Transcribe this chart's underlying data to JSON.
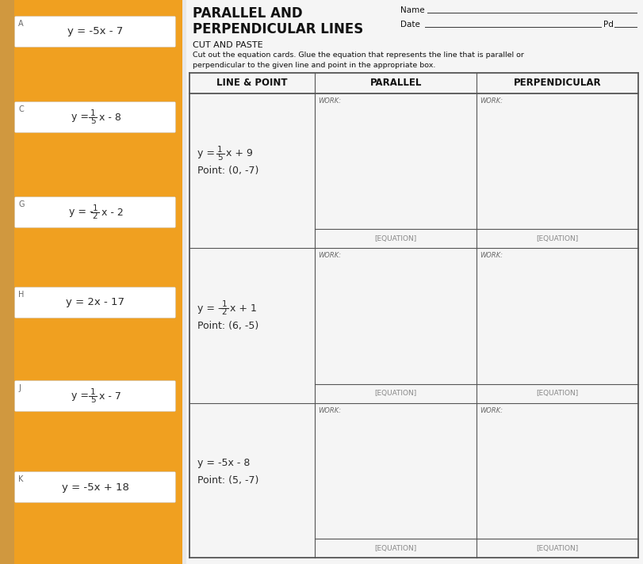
{
  "bg_color": "#e8e8e8",
  "orange_color": "#F0A020",
  "white": "#FFFFFF",
  "ws_bg": "#f0f0f0",
  "card_text_color": "#2a2a2a",
  "title_line1": "PARALLEL AND",
  "title_line2": "PERPENDICULAR LINES",
  "subtitle": "CUT AND PASTE",
  "instructions_line1": "Cut out the equation cards. Glue the equation that represents the line that is parallel or",
  "instructions_line2": "perpendicular to the given line and point in the appropriate box.",
  "col_headers": [
    "LINE & POINT",
    "PARALLEL",
    "PERPENDICULAR"
  ],
  "cards": [
    {
      "letter": "A",
      "has_frac": false,
      "text": "y = -5x - 7"
    },
    {
      "letter": "C",
      "has_frac": true,
      "prefix": "y = ",
      "num": "1",
      "den": "5",
      "suffix": "x - 8"
    },
    {
      "letter": "G",
      "has_frac": true,
      "prefix": "y = -",
      "num": "1",
      "den": "2",
      "suffix": "x - 2"
    },
    {
      "letter": "H",
      "has_frac": false,
      "text": "y = 2x - 17"
    },
    {
      "letter": "J",
      "has_frac": true,
      "prefix": "y = ",
      "num": "1",
      "den": "5",
      "suffix": "x - 7"
    },
    {
      "letter": "K",
      "has_frac": false,
      "text": "y = -5x + 18"
    }
  ],
  "rows": [
    {
      "has_frac": true,
      "prefix": "y = ",
      "num": "1",
      "den": "5",
      "suffix": "x + 9",
      "point": "Point: (0, -7)"
    },
    {
      "has_frac": true,
      "prefix": "y = -",
      "num": "1",
      "den": "2",
      "suffix": "x + 1",
      "point": "Point: (6, -5)"
    },
    {
      "has_frac": false,
      "text": "y = -5x - 8",
      "point": "Point: (5, -7)"
    }
  ]
}
